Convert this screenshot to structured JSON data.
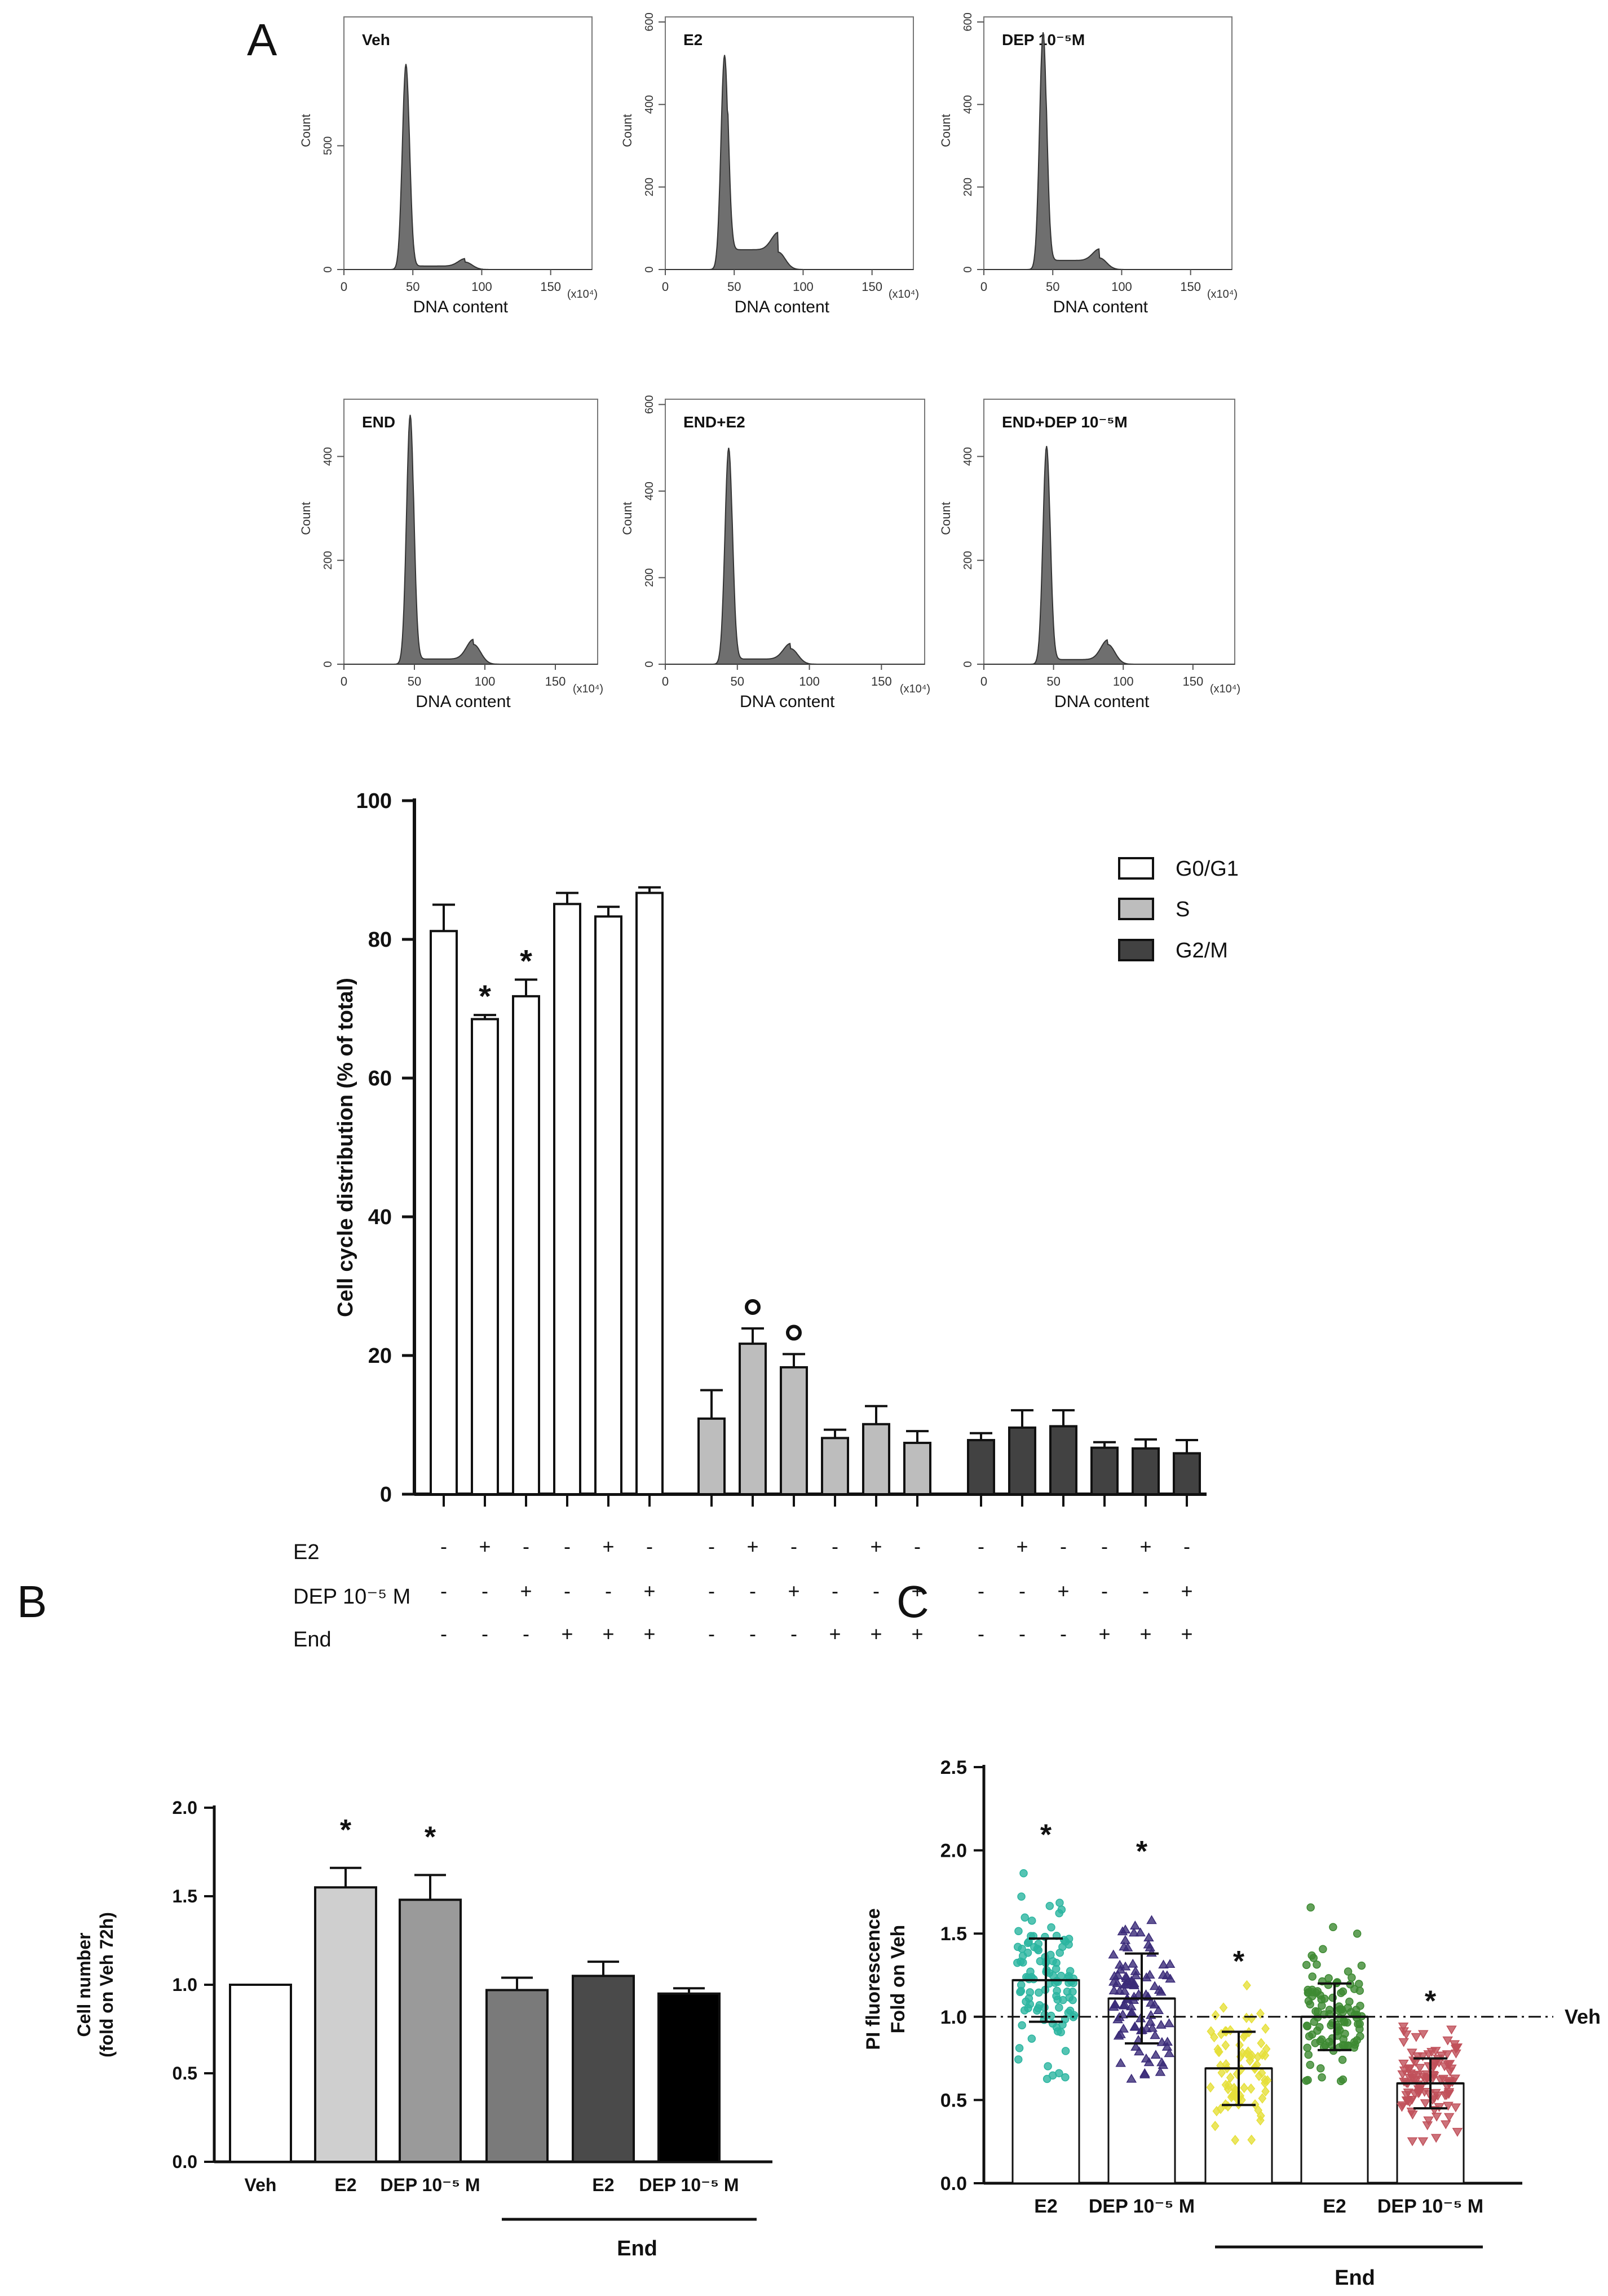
{
  "panel_labels": {
    "a": "A",
    "b": "B",
    "c": "C"
  },
  "histogram_common": {
    "xlabel": "DNA content",
    "ylabel": "Count",
    "x_ticks": [
      "0",
      "50",
      "100",
      "150"
    ],
    "x_unit": "(x10⁴)",
    "xlim": [
      0,
      180
    ]
  },
  "chart_data": [
    {
      "id": "histograms",
      "type": "area",
      "panels": [
        {
          "title": "Veh",
          "ylim": [
            0,
            1000
          ],
          "y_ticks": [
            "0",
            "500"
          ],
          "y_tick_values": [
            0,
            500
          ],
          "g1_peak": 45,
          "g1_height": 830,
          "g2_peak": 88,
          "g2_height": 30,
          "s_level": 14
        },
        {
          "title": "E2",
          "ylim": [
            0,
            600
          ],
          "y_ticks": [
            "0",
            "200",
            "400",
            "600"
          ],
          "y_tick_values": [
            0,
            200,
            400,
            600
          ],
          "g1_peak": 43,
          "g1_height": 520,
          "g2_peak": 82,
          "g2_height": 42,
          "s_level": 48
        },
        {
          "title": "DEP 10⁻⁵M",
          "ylim": [
            0,
            600
          ],
          "y_ticks": [
            "0",
            "200",
            "400",
            "600"
          ],
          "y_tick_values": [
            0,
            200,
            400,
            600
          ],
          "g1_peak": 43,
          "g1_height": 575,
          "g2_peak": 84,
          "g2_height": 28,
          "s_level": 22
        },
        {
          "title": "END",
          "ylim": [
            0,
            500
          ],
          "y_ticks": [
            "0",
            "200",
            "400"
          ],
          "y_tick_values": [
            0,
            200,
            400
          ],
          "g1_peak": 47,
          "g1_height": 480,
          "g2_peak": 92,
          "g2_height": 38,
          "s_level": 10
        },
        {
          "title": "END+E2",
          "ylim": [
            0,
            600
          ],
          "y_ticks": [
            "0",
            "200",
            "400",
            "600"
          ],
          "y_tick_values": [
            0,
            200,
            400,
            600
          ],
          "g1_peak": 44,
          "g1_height": 500,
          "g2_peak": 87,
          "g2_height": 36,
          "s_level": 12
        },
        {
          "title": "END+DEP 10⁻⁵M",
          "ylim": [
            0,
            500
          ],
          "y_ticks": [
            "0",
            "200",
            "400"
          ],
          "y_tick_values": [
            0,
            200,
            400
          ],
          "g1_peak": 45,
          "g1_height": 420,
          "g2_peak": 89,
          "g2_height": 38,
          "s_level": 9
        }
      ]
    },
    {
      "id": "cell-cycle",
      "type": "bar",
      "ylabel": "Cell cycle distribution (% of total)",
      "ylim": [
        0,
        100
      ],
      "y_ticks": [
        0,
        20,
        40,
        60,
        80,
        100
      ],
      "legend_position": "top-right",
      "series": [
        {
          "name": "G0/G1",
          "values": [
            81.2,
            68.5,
            71.8,
            85.1,
            83.3,
            86.7
          ],
          "errors": [
            3.8,
            0.6,
            2.4,
            1.6,
            1.4,
            0.8
          ],
          "marks": [
            "",
            "*",
            "*",
            "",
            "",
            ""
          ],
          "color": "#ffffff"
        },
        {
          "name": "S",
          "values": [
            10.9,
            21.7,
            18.3,
            8.1,
            10.1,
            7.4
          ],
          "errors": [
            4.1,
            2.2,
            1.9,
            1.2,
            2.6,
            1.7
          ],
          "marks": [
            "",
            "o",
            "o",
            "",
            "",
            ""
          ],
          "color": "#bdbdbd"
        },
        {
          "name": "G2/M",
          "values": [
            7.8,
            9.6,
            9.8,
            6.7,
            6.6,
            5.9
          ],
          "errors": [
            1.0,
            2.5,
            2.3,
            0.8,
            1.3,
            1.9
          ],
          "marks": [
            "",
            "",
            "",
            "",
            "",
            ""
          ],
          "color": "#424242"
        }
      ],
      "treatment_rows": [
        {
          "label": "E2",
          "signs": [
            "-",
            "+",
            "-",
            "-",
            "+",
            "-"
          ]
        },
        {
          "label": "DEP 10⁻⁵ M",
          "signs": [
            "-",
            "-",
            "+",
            "-",
            "-",
            "+"
          ]
        },
        {
          "label": "End",
          "signs": [
            "-",
            "-",
            "-",
            "+",
            "+",
            "+"
          ]
        }
      ]
    },
    {
      "id": "cell-number",
      "type": "bar",
      "ylabel": "Cell number",
      "ylabel_line2": "(fold on Veh 72h)",
      "ylim": [
        0,
        2.0
      ],
      "y_ticks": [
        "0.0",
        "0.5",
        "1.0",
        "1.5",
        "2.0"
      ],
      "y_tick_values": [
        0,
        0.5,
        1.0,
        1.5,
        2.0
      ],
      "categories": [
        "Veh",
        "E2",
        "DEP 10⁻⁵ M",
        "",
        "E2",
        "DEP 10⁻⁵ M"
      ],
      "values": [
        1.0,
        1.55,
        1.48,
        0.97,
        1.05,
        0.95
      ],
      "errors": [
        0,
        0.11,
        0.14,
        0.07,
        0.08,
        0.03
      ],
      "marks": [
        "",
        "*",
        "*",
        "",
        "",
        ""
      ],
      "colors": [
        "#ffffff",
        "#cfcfcf",
        "#9a9a9a",
        "#7a7a7a",
        "#4a4a4a",
        "#000000"
      ],
      "group_label": "End"
    },
    {
      "id": "pi-fluorescence",
      "type": "scatter",
      "ylabel": "PI fluorescence",
      "ylabel_line2": "Fold on Veh",
      "ylim": [
        0,
        2.5
      ],
      "y_ticks": [
        "0.0",
        "0.5",
        "1.0",
        "1.5",
        "2.0",
        "2.5"
      ],
      "y_tick_values": [
        0,
        0.5,
        1.0,
        1.5,
        2.0,
        2.5
      ],
      "reference_line": {
        "value": 1.0,
        "label": "Veh"
      },
      "categories": [
        "E2",
        "DEP 10⁻⁵ M",
        "",
        "E2",
        "DEP 10⁻⁵ M"
      ],
      "groups": [
        {
          "mean": 1.22,
          "sd": 0.25,
          "min": 0.62,
          "max": 1.96,
          "n": 110,
          "marker": "circle",
          "color": "#2bb5a0",
          "mark": "*"
        },
        {
          "mean": 1.11,
          "sd": 0.27,
          "min": 0.62,
          "max": 1.86,
          "n": 100,
          "marker": "triangle",
          "color": "#3a2a78",
          "mark": "*"
        },
        {
          "mean": 0.69,
          "sd": 0.22,
          "min": 0.22,
          "max": 1.2,
          "n": 80,
          "marker": "diamond",
          "color": "#e6e03a",
          "mark": "*"
        },
        {
          "mean": 1.0,
          "sd": 0.2,
          "min": 0.6,
          "max": 1.66,
          "n": 110,
          "marker": "circle",
          "color": "#3d8a32",
          "mark": ""
        },
        {
          "mean": 0.6,
          "sd": 0.15,
          "min": 0.25,
          "max": 0.96,
          "n": 110,
          "marker": "triangle-down",
          "color": "#c0505a",
          "mark": "*"
        }
      ],
      "group_label": "End"
    }
  ]
}
